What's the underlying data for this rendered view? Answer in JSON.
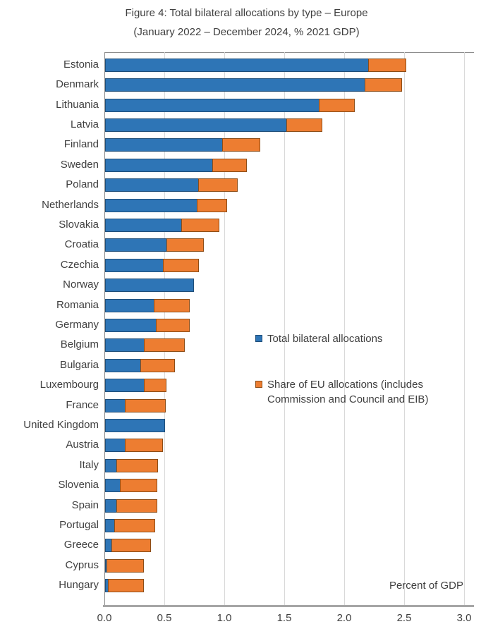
{
  "title": {
    "line1": "Figure 4: Total bilateral allocations by type – Europe",
    "line2": "(January 2022 – December 2024, % 2021 GDP)"
  },
  "axis_note": "Percent of GDP",
  "legend": {
    "item1": {
      "label": "Total bilateral allocations",
      "color": "#2E75B6"
    },
    "item2": {
      "label_line1": "Share of EU allocations (includes",
      "label_line2": "Commission and Council and EIB)",
      "color": "#ED7D31"
    }
  },
  "chart_data": {
    "type": "bar",
    "orientation": "horizontal",
    "stacked": true,
    "title": "Figure 4: Total bilateral allocations by type – Europe (January 2022 – December 2024, % 2021 GDP)",
    "xlabel": "Percent of GDP",
    "ylabel": "",
    "xlim": [
      0.0,
      3.0
    ],
    "x_tick_labels": [
      "0.0",
      "0.5",
      "1.0",
      "1.5",
      "2.0",
      "2.5",
      "3.0"
    ],
    "grid": "vertical",
    "legend_position": "inside-right",
    "categories": [
      "Estonia",
      "Denmark",
      "Lithuania",
      "Latvia",
      "Finland",
      "Sweden",
      "Poland",
      "Netherlands",
      "Slovakia",
      "Croatia",
      "Czechia",
      "Norway",
      "Romania",
      "Germany",
      "Belgium",
      "Bulgaria",
      "Luxembourg",
      "France",
      "United Kingdom",
      "Austria",
      "Italy",
      "Slovenia",
      "Spain",
      "Portugal",
      "Greece",
      "Cyprus",
      "Hungary"
    ],
    "series": [
      {
        "name": "Total bilateral allocations",
        "color": "#2E75B6",
        "border_color": "#1F4E79",
        "values": [
          2.2,
          2.17,
          1.79,
          1.52,
          0.98,
          0.9,
          0.78,
          0.77,
          0.64,
          0.52,
          0.49,
          0.74,
          0.41,
          0.43,
          0.33,
          0.3,
          0.33,
          0.17,
          0.5,
          0.17,
          0.1,
          0.13,
          0.1,
          0.08,
          0.06,
          0.02,
          0.03
        ]
      },
      {
        "name": "Share of EU allocations (includes Commission and Council and EIB)",
        "color": "#ED7D31",
        "border_color": "#8C4D17",
        "values": [
          0.32,
          0.31,
          0.3,
          0.3,
          0.32,
          0.29,
          0.33,
          0.25,
          0.32,
          0.31,
          0.3,
          0.0,
          0.3,
          0.28,
          0.34,
          0.29,
          0.19,
          0.34,
          0.0,
          0.32,
          0.35,
          0.31,
          0.34,
          0.34,
          0.33,
          0.31,
          0.3
        ]
      }
    ],
    "totals": [
      2.52,
      2.48,
      2.09,
      1.82,
      1.3,
      1.19,
      1.11,
      1.02,
      0.96,
      0.83,
      0.79,
      0.74,
      0.71,
      0.71,
      0.67,
      0.59,
      0.52,
      0.51,
      0.5,
      0.49,
      0.45,
      0.44,
      0.44,
      0.42,
      0.39,
      0.33,
      0.33
    ]
  }
}
